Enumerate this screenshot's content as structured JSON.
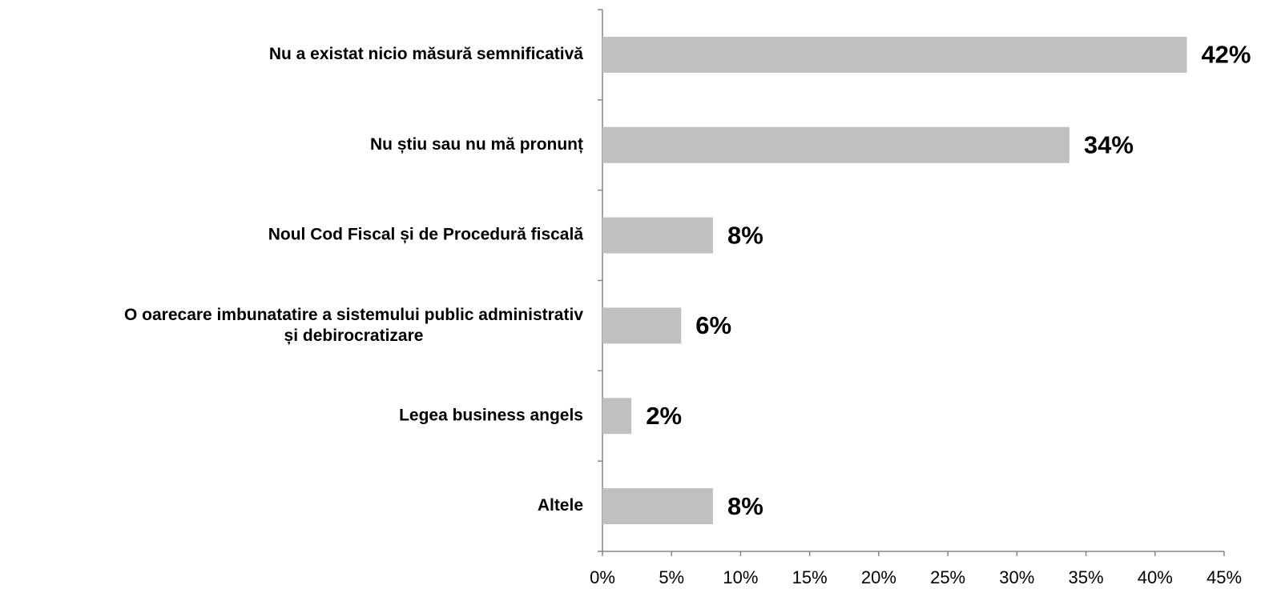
{
  "chart_data": {
    "type": "barh",
    "categories": [
      "Nu a existat nicio măsură semnificativă",
      "Nu știu sau nu mă pronunț",
      "Noul Cod Fiscal și de Procedură fiscală",
      "O oarecare imbunatatire a sistemului public administrativ\nși debirocratizare",
      "Legea business angels",
      "Altele"
    ],
    "values": [
      42.3,
      33.8,
      8.0,
      5.7,
      2.1,
      8.0
    ],
    "value_labels": [
      "42%",
      "34%",
      "8%",
      "6%",
      "2%",
      "8%"
    ],
    "color": "#c0c0c0",
    "xlim": [
      0,
      45
    ],
    "xticks": [
      {
        "value": 0,
        "label": "0%"
      },
      {
        "value": 5,
        "label": "5%"
      },
      {
        "value": 10,
        "label": "10%"
      },
      {
        "value": 15,
        "label": "15%"
      },
      {
        "value": 20,
        "label": "20%"
      },
      {
        "value": 25,
        "label": "25%"
      },
      {
        "value": 30,
        "label": "30%"
      },
      {
        "value": 35,
        "label": "35%"
      },
      {
        "value": 40,
        "label": "40%"
      },
      {
        "value": 45,
        "label": "45%"
      }
    ],
    "grid": false
  }
}
